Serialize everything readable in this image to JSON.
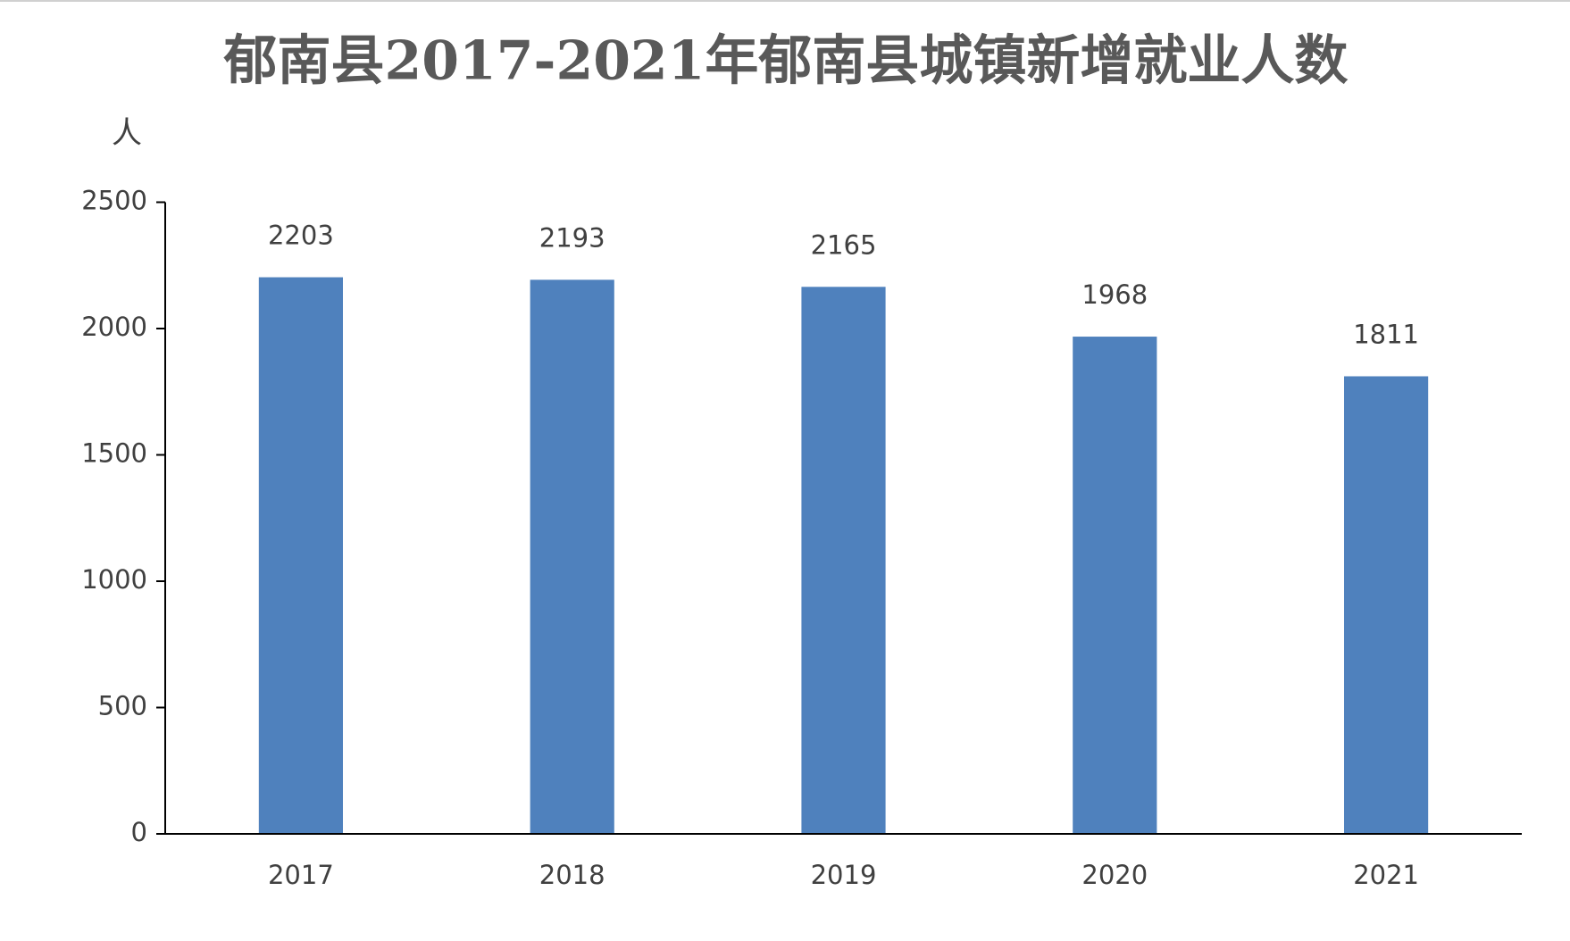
{
  "chart_data": {
    "type": "bar",
    "title": "郁南县2017-2021年郁南县城镇新增就业人数",
    "y_label": "人",
    "categories": [
      "2017",
      "2018",
      "2019",
      "2020",
      "2021"
    ],
    "values": [
      2203,
      2193,
      2165,
      1968,
      1811
    ],
    "color": "#4f81bd",
    "ylim": [
      0,
      2500
    ],
    "yticks": [
      0,
      500,
      1000,
      1500,
      2000,
      2500
    ],
    "grid": false
  }
}
